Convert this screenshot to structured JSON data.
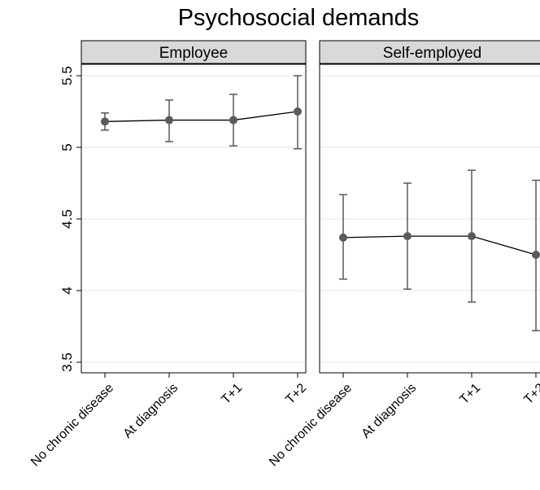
{
  "chart_data": {
    "type": "line",
    "title": "Psychosocial demands",
    "xlabel": "",
    "ylabel": "",
    "ylim": [
      3.5,
      5.5
    ],
    "yticks": [
      "3.5",
      "4",
      "4.5",
      "5",
      "5.5"
    ],
    "ytick_values": [
      3.5,
      4,
      4.5,
      5,
      5.5
    ],
    "categories": [
      "No chronic disease",
      "At diagnosis",
      "T+1",
      "T+2"
    ],
    "grid": true,
    "error_bars": "confidence interval",
    "panels": [
      {
        "label": "Employee",
        "values": [
          5.18,
          5.19,
          5.19,
          5.25
        ],
        "lower": [
          5.12,
          5.04,
          5.01,
          4.99
        ],
        "upper": [
          5.24,
          5.33,
          5.37,
          5.5
        ]
      },
      {
        "label": "Self-employed",
        "values": [
          4.37,
          4.38,
          4.38,
          4.25
        ],
        "lower": [
          4.08,
          4.01,
          3.92,
          3.72
        ],
        "upper": [
          4.67,
          4.75,
          4.84,
          4.77
        ]
      }
    ]
  }
}
